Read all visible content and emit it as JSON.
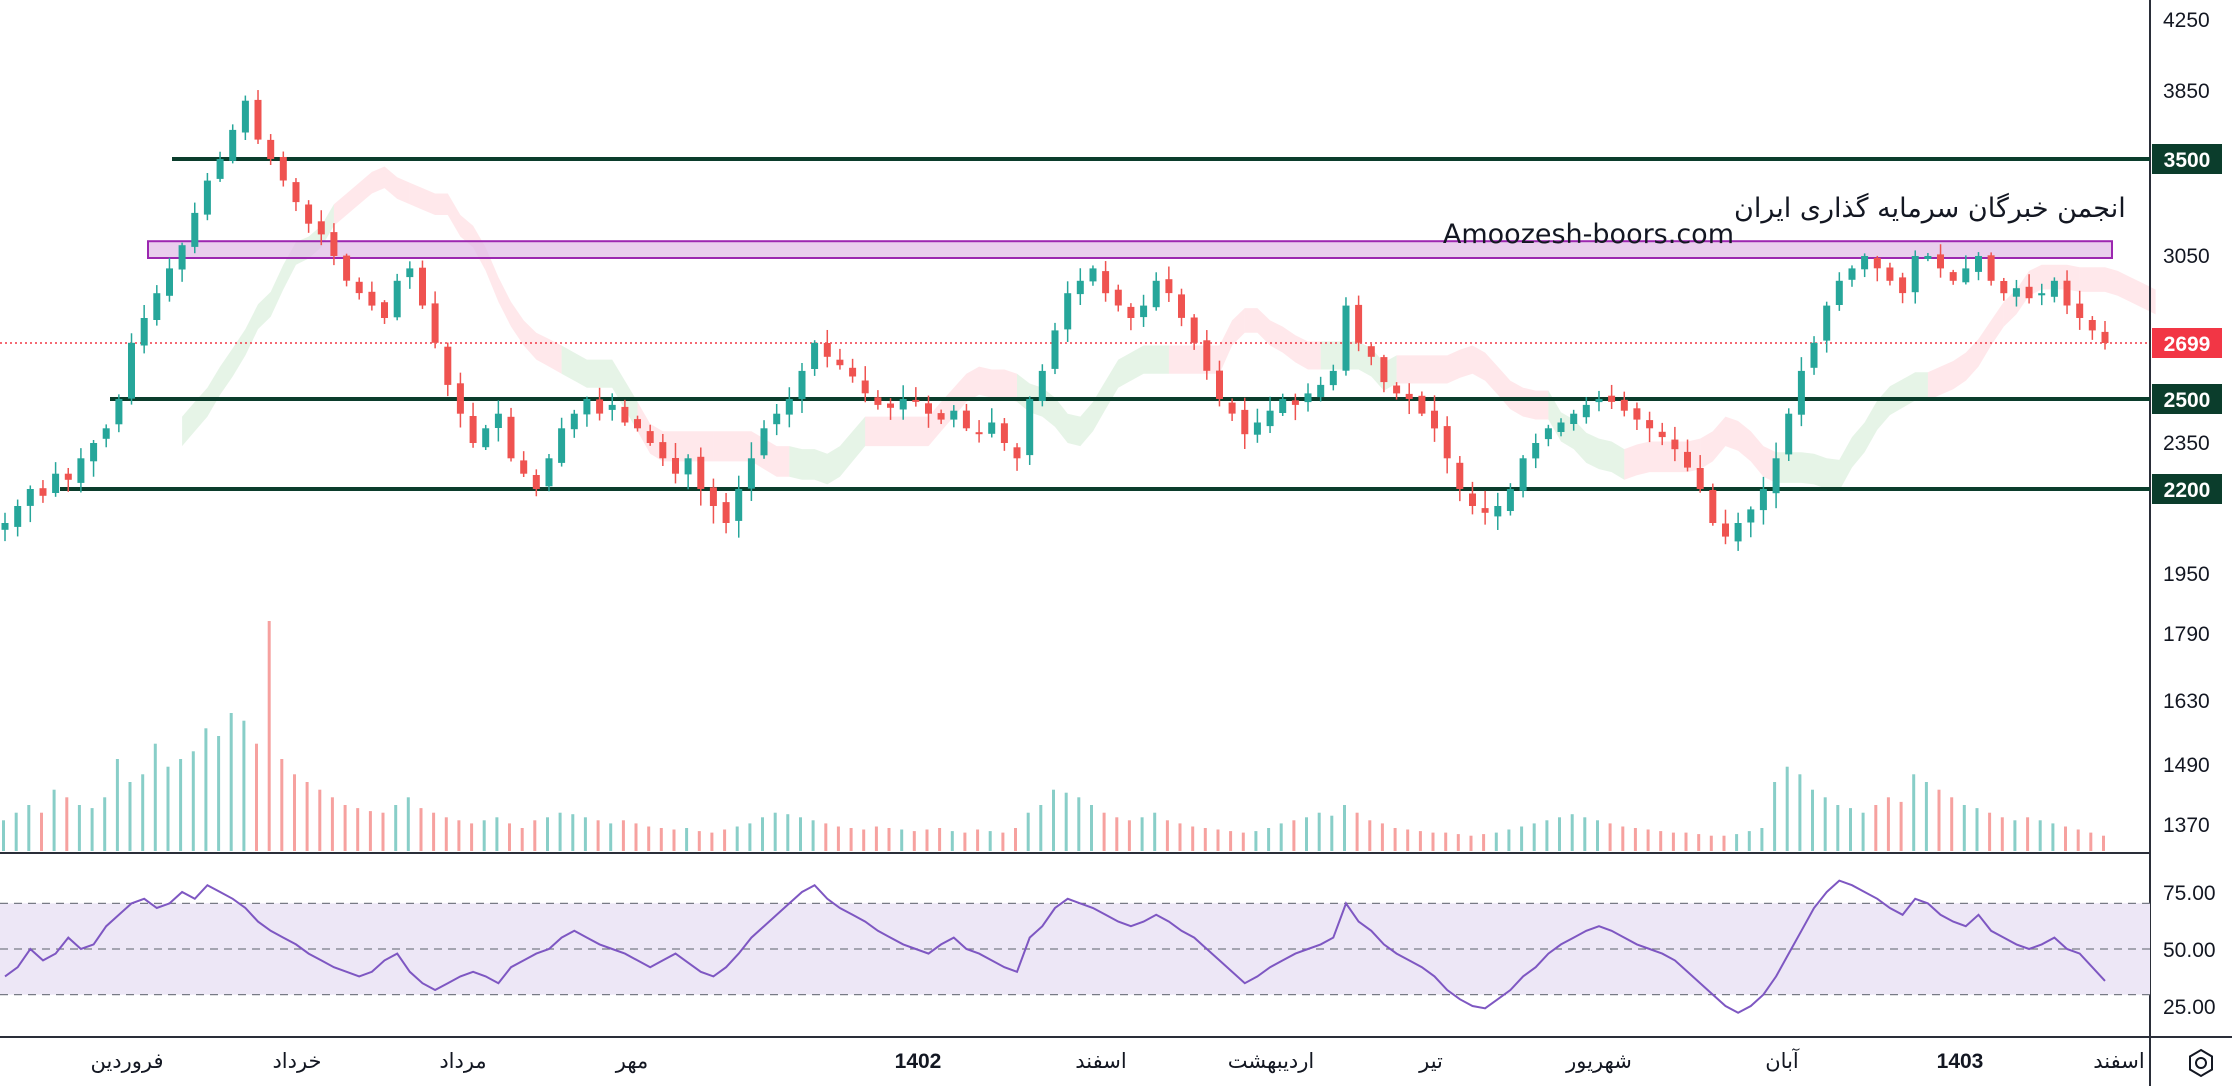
{
  "colors": {
    "up": "#26a69a",
    "down": "#ef5350",
    "levels": "#0b3d2c",
    "band_stroke": "#9c27b0",
    "band_fill": "#e1bee7",
    "last_price": "#f23645",
    "rsi_line": "#7e57c2",
    "rsi_band": "#ede7f6",
    "cloud_green": "#c8e6c9",
    "cloud_red": "#ffcdd2"
  },
  "watermark": {
    "line1": "انجمن خبرگان سرمایه گذاری ایران",
    "line2": "Amoozesh-boors.com"
  },
  "chart_data": [
    {
      "type": "candlestick",
      "title": "",
      "price_axis_labels": [
        "4250",
        "3850",
        "3050",
        "2350",
        "1950",
        "1790",
        "1630",
        "1490",
        "1370"
      ],
      "levels": [
        3500,
        2500,
        2200
      ],
      "level_labels": [
        "3500",
        "2500",
        "2200"
      ],
      "resistance_zone": [
        3050,
        3100
      ],
      "last_price": 2699,
      "last_price_label": "2699",
      "time_axis_labels": [
        {
          "label": "فروردین",
          "year": false
        },
        {
          "label": "خرداد",
          "year": false
        },
        {
          "label": "مرداد",
          "year": false
        },
        {
          "label": "مهر",
          "year": false
        },
        {
          "label": "1402",
          "year": true
        },
        {
          "label": "اسفند",
          "year": false
        },
        {
          "label": "اردیبهشت",
          "year": false
        },
        {
          "label": "تیر",
          "year": false
        },
        {
          "label": "شهریور",
          "year": false
        },
        {
          "label": "آبان",
          "year": false
        },
        {
          "label": "1403",
          "year": true
        },
        {
          "label": "اسفند",
          "year": false
        }
      ],
      "close_series": [
        2100,
        2150,
        2200,
        2180,
        2250,
        2230,
        2300,
        2350,
        2400,
        2500,
        2700,
        2800,
        2900,
        3000,
        3100,
        3250,
        3400,
        3500,
        3650,
        3800,
        3600,
        3500,
        3400,
        3300,
        3200,
        3150,
        3050,
        2950,
        2900,
        2850,
        2800,
        2950,
        3000,
        2850,
        2700,
        2550,
        2450,
        2350,
        2400,
        2450,
        2300,
        2250,
        2200,
        2300,
        2400,
        2450,
        2500,
        2450,
        2480,
        2420,
        2400,
        2350,
        2300,
        2250,
        2300,
        2200,
        2150,
        2100,
        2200,
        2300,
        2400,
        2450,
        2500,
        2600,
        2700,
        2650,
        2620,
        2580,
        2520,
        2480,
        2470,
        2500,
        2490,
        2450,
        2430,
        2460,
        2400,
        2380,
        2420,
        2350,
        2300,
        2500,
        2600,
        2750,
        2900,
        2950,
        3000,
        2900,
        2850,
        2800,
        2850,
        2950,
        2900,
        2800,
        2700,
        2600,
        2500,
        2450,
        2380,
        2420,
        2460,
        2500,
        2480,
        2520,
        2550,
        2600,
        2850,
        2700,
        2650,
        2560,
        2520,
        2500,
        2450,
        2400,
        2300,
        2200,
        2150,
        2130,
        2150,
        2200,
        2300,
        2350,
        2400,
        2420,
        2450,
        2480,
        2500,
        2490,
        2460,
        2430,
        2400,
        2370,
        2330,
        2270,
        2200,
        2100,
        2060,
        2100,
        2140,
        2200,
        2300,
        2450,
        2600,
        2700,
        2850,
        2950,
        3000,
        3050,
        3000,
        2950,
        2900,
        3050,
        3050,
        3000,
        2950,
        3000,
        3050,
        2950,
        2900,
        2920,
        2880,
        2900,
        2950,
        2850,
        2800,
        2750,
        2699
      ],
      "volume_series": [
        20,
        25,
        30,
        25,
        40,
        35,
        30,
        28,
        35,
        60,
        45,
        50,
        70,
        55,
        60,
        65,
        80,
        75,
        90,
        85,
        70,
        150,
        60,
        50,
        45,
        40,
        35,
        30,
        28,
        26,
        25,
        30,
        35,
        28,
        25,
        22,
        20,
        18,
        20,
        22,
        18,
        15,
        20,
        22,
        25,
        24,
        22,
        20,
        18,
        20,
        18,
        16,
        15,
        14,
        15,
        13,
        12,
        14,
        16,
        18,
        22,
        25,
        24,
        22,
        20,
        18,
        16,
        15,
        14,
        16,
        15,
        14,
        13,
        14,
        15,
        13,
        12,
        14,
        13,
        12,
        15,
        25,
        30,
        40,
        38,
        35,
        30,
        25,
        22,
        20,
        22,
        25,
        20,
        18,
        16,
        15,
        14,
        13,
        12,
        13,
        15,
        18,
        20,
        22,
        25,
        23,
        30,
        25,
        20,
        18,
        15,
        14,
        13,
        12,
        12,
        11,
        10,
        11,
        12,
        14,
        16,
        18,
        20,
        22,
        24,
        22,
        20,
        18,
        16,
        15,
        14,
        13,
        12,
        12,
        11,
        10,
        10,
        11,
        13,
        15,
        45,
        55,
        50,
        40,
        35,
        30,
        28,
        25,
        30,
        35,
        32,
        50,
        45,
        40,
        35,
        30,
        28,
        25,
        22,
        20,
        22,
        20,
        18,
        16,
        14,
        12,
        10
      ],
      "rsi_series": [
        38,
        42,
        50,
        45,
        48,
        55,
        50,
        52,
        60,
        65,
        70,
        72,
        68,
        70,
        75,
        72,
        78,
        75,
        72,
        68,
        62,
        58,
        55,
        52,
        48,
        45,
        42,
        40,
        38,
        40,
        45,
        48,
        40,
        35,
        32,
        35,
        38,
        40,
        38,
        35,
        42,
        45,
        48,
        50,
        55,
        58,
        55,
        52,
        50,
        48,
        45,
        42,
        45,
        48,
        44,
        40,
        38,
        42,
        48,
        55,
        60,
        65,
        70,
        75,
        78,
        72,
        68,
        65,
        62,
        58,
        55,
        52,
        50,
        48,
        52,
        55,
        50,
        48,
        45,
        42,
        40,
        55,
        60,
        68,
        72,
        70,
        68,
        65,
        62,
        60,
        62,
        65,
        62,
        58,
        55,
        50,
        45,
        40,
        35,
        38,
        42,
        45,
        48,
        50,
        52,
        55,
        70,
        62,
        58,
        52,
        48,
        45,
        42,
        38,
        32,
        28,
        25,
        24,
        28,
        32,
        38,
        42,
        48,
        52,
        55,
        58,
        60,
        58,
        55,
        52,
        50,
        48,
        45,
        40,
        35,
        30,
        25,
        22,
        25,
        30,
        38,
        48,
        58,
        68,
        75,
        80,
        78,
        75,
        72,
        68,
        65,
        72,
        70,
        65,
        62,
        60,
        65,
        58,
        55,
        52,
        50,
        52,
        55,
        50,
        48,
        42,
        36
      ]
    }
  ]
}
